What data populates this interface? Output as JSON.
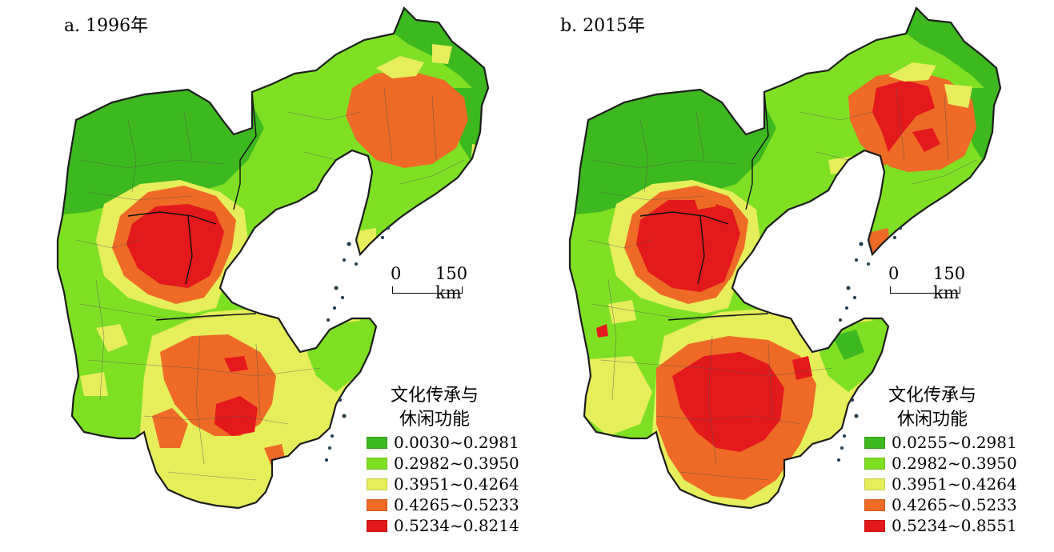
{
  "colors": {
    "dark_green": "#3DB81F",
    "light_green": "#7FE023",
    "yellow": "#E6EE5A",
    "orange": "#EE6A26",
    "red": "#E3191B",
    "sea": "#FFFFFF",
    "border": "#1c1c1c",
    "islands": "#1f3b4d"
  },
  "panels": [
    {
      "id": "a",
      "title": "a. 1996年",
      "scale": {
        "zero": "0",
        "value": "150 km"
      },
      "legend": {
        "title_line1": "文化传承与",
        "title_line2": "休闲功能",
        "classes": [
          {
            "label": "0.0030~0.2981",
            "color": "#3DB81F"
          },
          {
            "label": "0.2982~0.3950",
            "color": "#7FE023"
          },
          {
            "label": "0.3951~0.4264",
            "color": "#E6EE5A"
          },
          {
            "label": "0.4265~0.5233",
            "color": "#EE6A26"
          },
          {
            "label": "0.5234~0.8214",
            "color": "#E3191B"
          }
        ]
      }
    },
    {
      "id": "b",
      "title": "b. 2015年",
      "scale": {
        "zero": "0",
        "value": "150 km"
      },
      "legend": {
        "title_line1": "文化传承与",
        "title_line2": "休闲功能",
        "classes": [
          {
            "label": "0.0255~0.2981",
            "color": "#3DB81F"
          },
          {
            "label": "0.2982~0.3950",
            "color": "#7FE023"
          },
          {
            "label": "0.3951~0.4264",
            "color": "#E6EE5A"
          },
          {
            "label": "0.4265~0.5233",
            "color": "#EE6A26"
          },
          {
            "label": "0.5234~0.8551",
            "color": "#E3191B"
          }
        ]
      }
    }
  ]
}
